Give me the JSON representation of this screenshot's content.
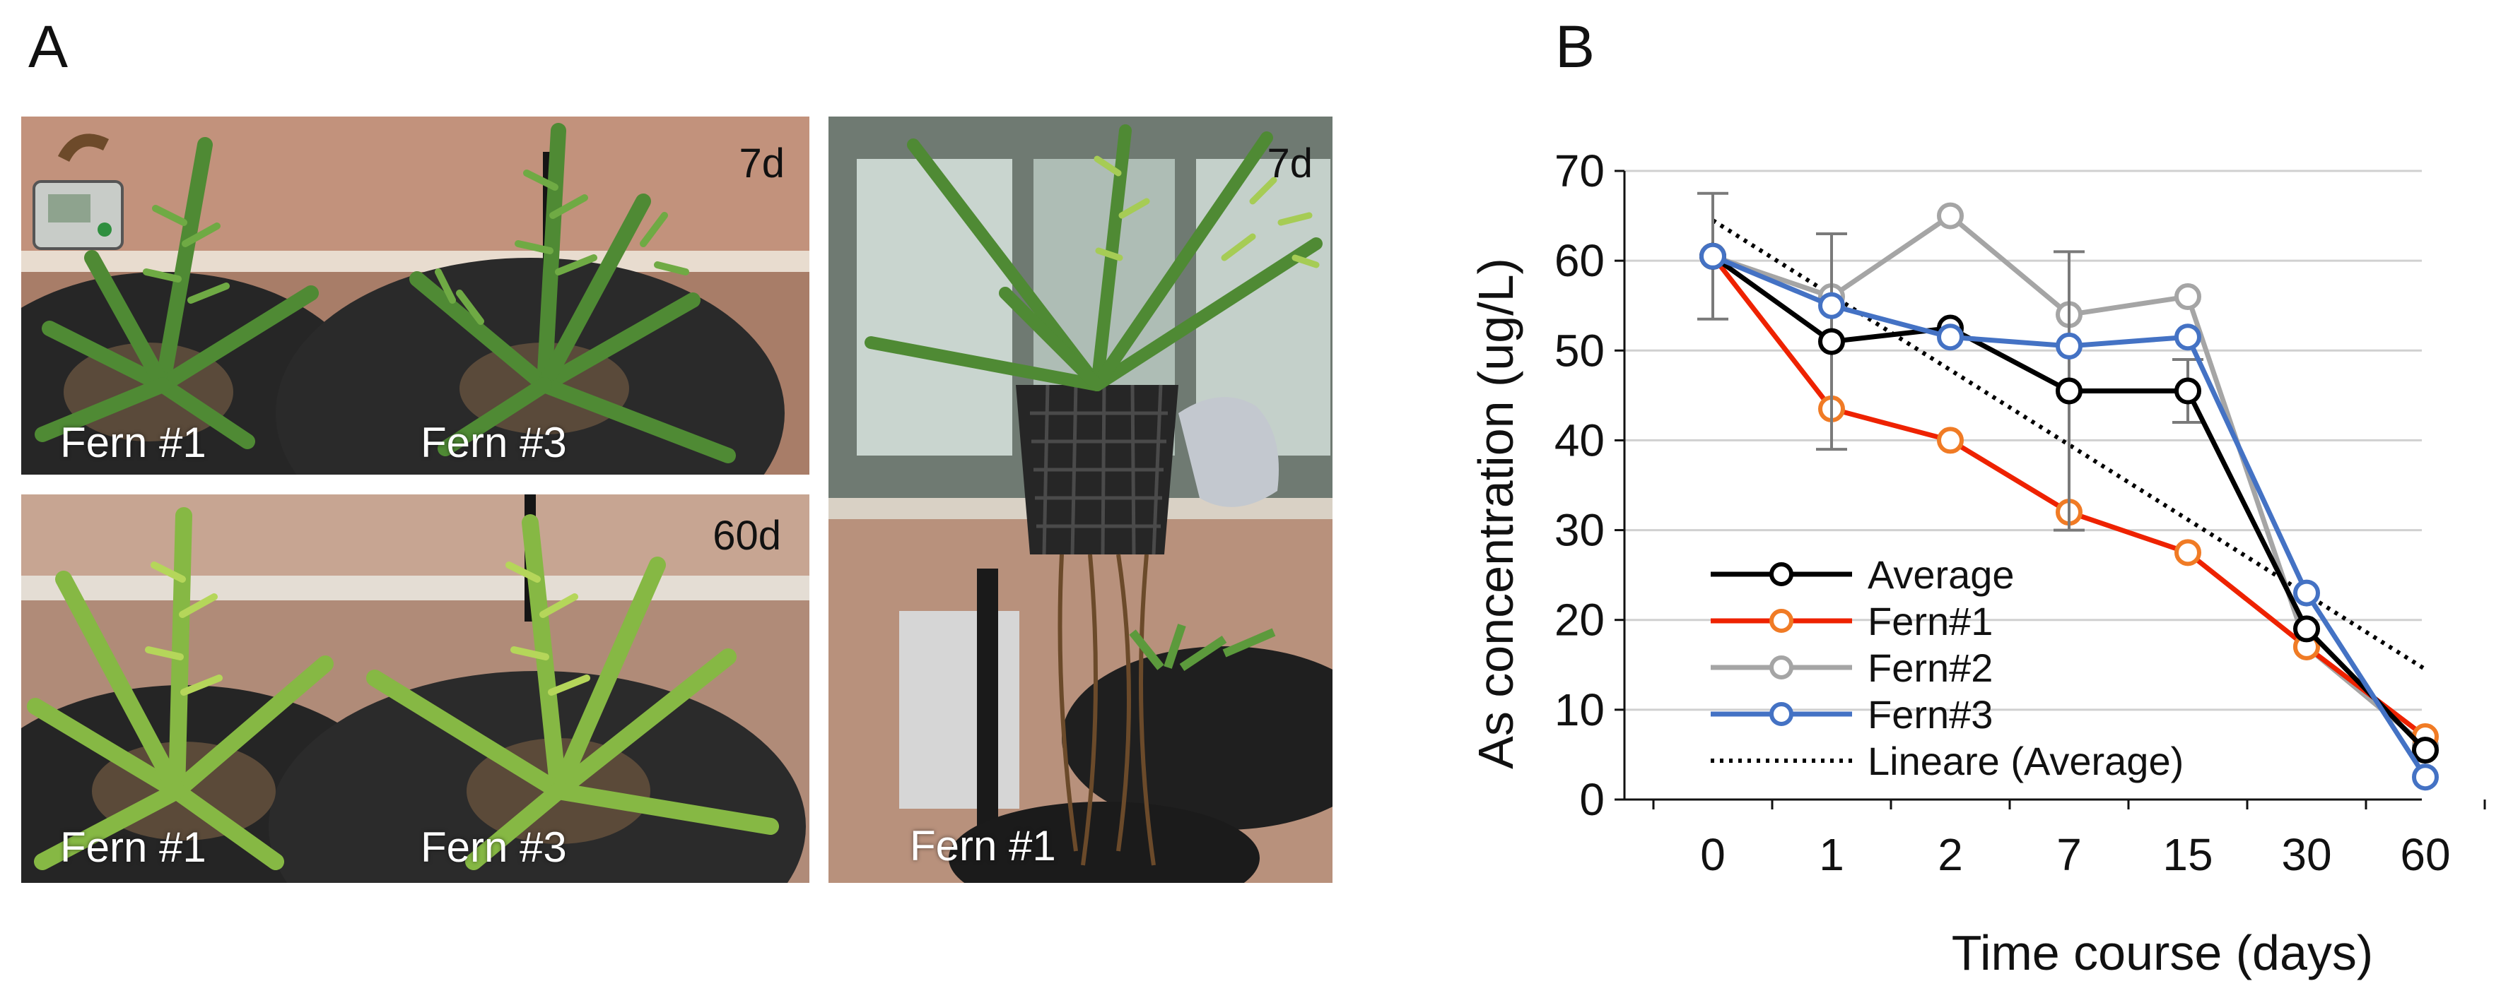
{
  "panel_a": {
    "label": "A",
    "photos": [
      {
        "day": "7d",
        "labels": [
          "Fern #1",
          "Fern #3"
        ]
      },
      {
        "day": "60d",
        "labels": [
          "Fern #1",
          "Fern #3"
        ]
      },
      {
        "day": "7d",
        "labels": [
          "Fern #1"
        ]
      }
    ]
  },
  "panel_b": {
    "label": "B"
  },
  "chart_data": {
    "type": "line",
    "xlabel": "Time course (days)",
    "ylabel": "As concentration (ug/L)",
    "categories": [
      "0",
      "1",
      "2",
      "7",
      "15",
      "30",
      "60"
    ],
    "ylim": [
      0,
      70
    ],
    "yticks": [
      "0",
      "10",
      "20",
      "30",
      "40",
      "50",
      "60",
      "70"
    ],
    "grid": "horizontal",
    "legend_position": "bottom-left",
    "series": [
      {
        "name": "Average",
        "color": "#000000",
        "values": [
          60.5,
          51,
          52.5,
          45.5,
          45.5,
          19,
          5.5
        ],
        "error": [
          7,
          12,
          0,
          15.5,
          3.5,
          0,
          0
        ]
      },
      {
        "name": "Fern#1",
        "color": "#ee2200",
        "marker_color": "#f07b25",
        "values": [
          60.5,
          43.5,
          40,
          32,
          27.5,
          17,
          7
        ]
      },
      {
        "name": "Fern#2",
        "color": "#a5a5a5",
        "values": [
          60.5,
          56,
          65,
          54,
          56,
          17,
          6
        ]
      },
      {
        "name": "Fern#3",
        "color": "#4472c4",
        "values": [
          60.5,
          55,
          51.5,
          50.5,
          51.5,
          23,
          2.5
        ]
      }
    ],
    "trendline": {
      "name": "Lineare (Average)",
      "style": "dotted",
      "color": "#000000",
      "start": 64.5,
      "end": 14.5
    }
  }
}
